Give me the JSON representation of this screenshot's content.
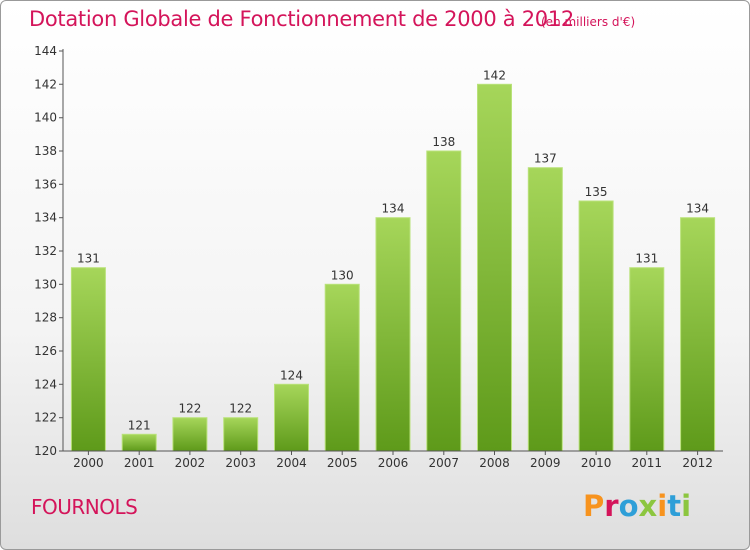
{
  "header": {
    "title": "Dotation Globale de Fonctionnement de 2000 à 2012",
    "subtitle": "(en milliers d'€)"
  },
  "footer": {
    "commune": "FOURNOLS",
    "brand": "Proxiti",
    "brand_colors": [
      "#f7931e",
      "#d4145a",
      "#2e9fd8",
      "#8cc63f",
      "#f7931e",
      "#2e9fd8",
      "#8cc63f"
    ]
  },
  "chart_data": {
    "type": "bar",
    "title": "Dotation Globale de Fonctionnement de 2000 à 2012",
    "subtitle": "(en milliers d'€)",
    "xlabel": "",
    "ylabel": "",
    "categories": [
      "2000",
      "2001",
      "2002",
      "2003",
      "2004",
      "2005",
      "2006",
      "2007",
      "2008",
      "2009",
      "2010",
      "2011",
      "2012"
    ],
    "values": [
      131,
      121,
      122,
      122,
      124,
      130,
      134,
      138,
      142,
      137,
      135,
      131,
      134
    ],
    "ylim": [
      120,
      144
    ],
    "yticks": [
      120,
      122,
      124,
      126,
      128,
      130,
      132,
      134,
      136,
      138,
      140,
      142,
      144
    ],
    "grid": false,
    "legend": "none",
    "colors": {
      "bar_top": "#a6d65a",
      "bar_bottom": "#5e9a1a",
      "axis": "#555555",
      "title": "#d4145a"
    }
  }
}
